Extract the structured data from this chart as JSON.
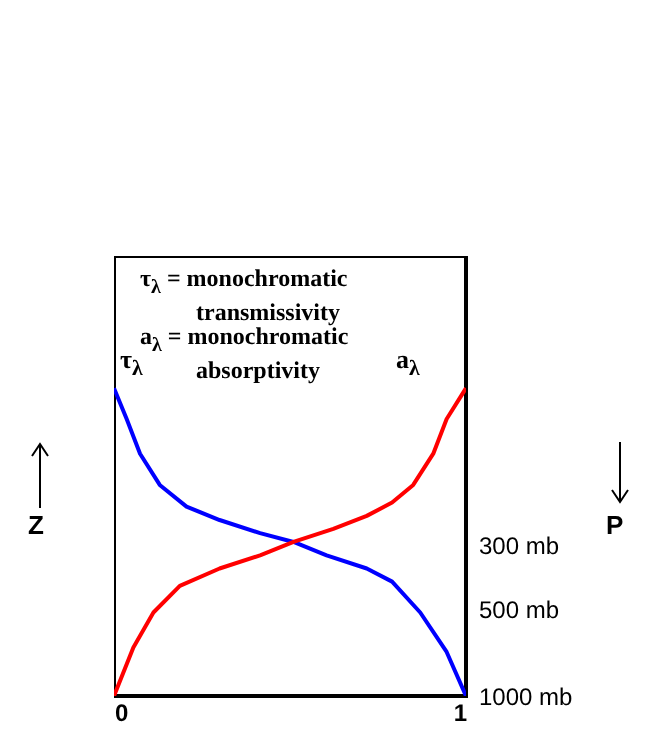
{
  "chart_data": {
    "type": "line",
    "annotations": [
      "τ$_{λ}$ = monochromatic transmissivity",
      "a$_{λ}$ = monochromatic absorptivity",
      "Z",
      "P"
    ],
    "xlim": [
      0,
      1
    ],
    "xticks": [
      0,
      1
    ],
    "ylim": [
      1000,
      30
    ],
    "log": "y",
    "yticks": [
      {
        "value": 1000,
        "label": "1000 mb"
      },
      {
        "value": 500,
        "label": "500 mb"
      },
      {
        "value": 300,
        "label": "300 mb"
      }
    ],
    "grid": false,
    "series": [
      {
        "name": "τ$_{λ}$",
        "color": "#0000ff",
        "x": [
          0,
          0.036,
          0.074,
          0.13,
          0.206,
          0.3,
          0.415,
          0.51,
          0.604,
          0.718,
          0.79,
          0.87,
          0.945,
          1
        ],
        "values": [
          86,
          110,
          145,
          186,
          221,
          246,
          273,
          293,
          326,
          362,
          402,
          514,
          704,
          1000
        ]
      },
      {
        "name": "a$_{λ}$",
        "color": "#ff0000",
        "x": [
          0,
          0.055,
          0.112,
          0.187,
          0.3,
          0.415,
          0.51,
          0.623,
          0.718,
          0.79,
          0.85,
          0.907,
          0.945,
          1
        ],
        "values": [
          1000,
          680,
          514,
          416,
          362,
          326,
          293,
          264,
          238,
          214,
          186,
          145,
          110,
          86
        ]
      }
    ]
  }
}
